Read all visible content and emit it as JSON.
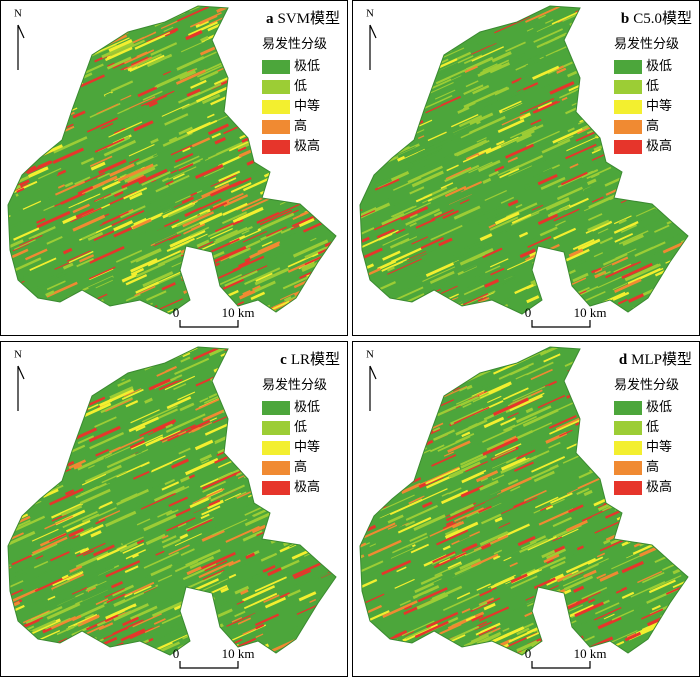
{
  "panels": [
    {
      "letter": "a",
      "model": "SVM模型",
      "legend_title": "易发性分级",
      "legend": [
        {
          "label": "极低",
          "color": "#4ca63b"
        },
        {
          "label": "低",
          "color": "#9ccd35"
        },
        {
          "label": "中等",
          "color": "#f3ef2f"
        },
        {
          "label": "高",
          "color": "#f08a32"
        },
        {
          "label": "极高",
          "color": "#e6352b"
        }
      ],
      "north": "N",
      "scale": {
        "start": "0",
        "end": "10 km"
      }
    },
    {
      "letter": "b",
      "model": "C5.0模型",
      "legend_title": "易发性分级",
      "legend": [
        {
          "label": "极低",
          "color": "#4ca63b"
        },
        {
          "label": "低",
          "color": "#9ccd35"
        },
        {
          "label": "中等",
          "color": "#f3ef2f"
        },
        {
          "label": "高",
          "color": "#f08a32"
        },
        {
          "label": "极高",
          "color": "#e6352b"
        }
      ],
      "north": "N",
      "scale": {
        "start": "0",
        "end": "10 km"
      }
    },
    {
      "letter": "c",
      "model": "LR模型",
      "legend_title": "易发性分级",
      "legend": [
        {
          "label": "极低",
          "color": "#4ca63b"
        },
        {
          "label": "低",
          "color": "#9ccd35"
        },
        {
          "label": "中等",
          "color": "#f3ef2f"
        },
        {
          "label": "高",
          "color": "#f08a32"
        },
        {
          "label": "极高",
          "color": "#e6352b"
        }
      ],
      "north": "N",
      "scale": {
        "start": "0",
        "end": "10 km"
      }
    },
    {
      "letter": "d",
      "model": "MLP模型",
      "legend_title": "易发性分级",
      "legend": [
        {
          "label": "极低",
          "color": "#4ca63b"
        },
        {
          "label": "低",
          "color": "#9ccd35"
        },
        {
          "label": "中等",
          "color": "#f3ef2f"
        },
        {
          "label": "高",
          "color": "#f08a32"
        },
        {
          "label": "极高",
          "color": "#e6352b"
        }
      ],
      "north": "N",
      "scale": {
        "start": "0",
        "end": "10 km"
      }
    }
  ]
}
